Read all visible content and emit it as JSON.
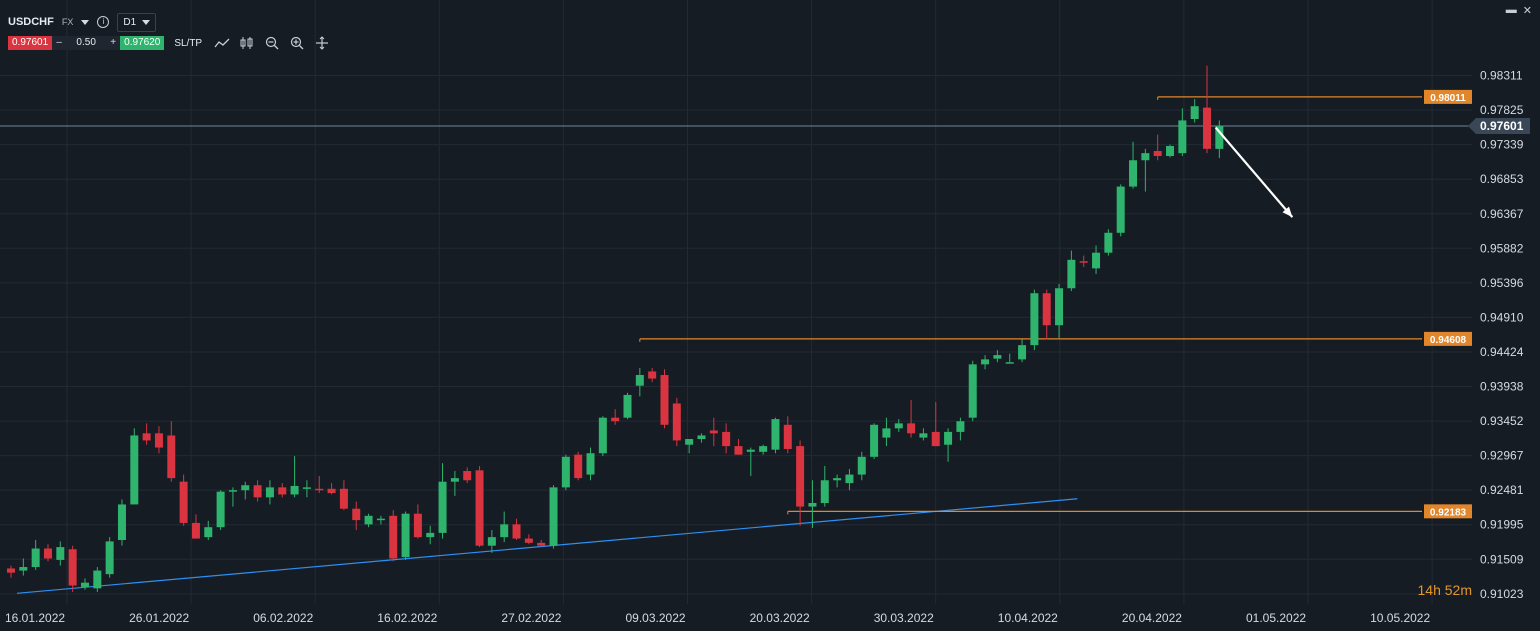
{
  "toolbar": {
    "symbol": "USDCHF",
    "market": "FX",
    "timeframe": "D1",
    "sell_price": "0.97601",
    "lot_minus": "–",
    "lot_size": "0.50",
    "lot_plus": "+",
    "buy_price": "0.97620",
    "sltp_label": "SL/TP",
    "tools": [
      "line-chart-icon",
      "candlestick-icon",
      "zoom-out-icon",
      "zoom-in-icon",
      "crosshair-icon"
    ]
  },
  "window": {
    "minimize": "▬",
    "close": "✕"
  },
  "countdown": {
    "hours": "14",
    "h": "h",
    "minutes": "52",
    "m": "m"
  },
  "colors": {
    "background": "#161c24",
    "grid": "#222a34",
    "bull": "#2fb46d",
    "bear": "#d9343f",
    "level": "#e2862b",
    "trendline": "#2e8ff2",
    "price_line": "#6f8696",
    "arrow": "#ffffff"
  },
  "chart_data": {
    "type": "candlestick",
    "symbol": "USDCHF",
    "timeframe": "D1",
    "ylim": [
      0.9088,
      0.986
    ],
    "y_ticks": [
      "0.98311",
      "0.97825",
      "0.97339",
      "0.96853",
      "0.96367",
      "0.95882",
      "0.95396",
      "0.94910",
      "0.94424",
      "0.93938",
      "0.93452",
      "0.92967",
      "0.92481",
      "0.91995",
      "0.91509",
      "0.91023"
    ],
    "x_ticks": [
      "16.01.2022",
      "26.01.2022",
      "06.02.2022",
      "16.02.2022",
      "27.02.2022",
      "09.03.2022",
      "20.03.2022",
      "30.03.2022",
      "10.04.2022",
      "20.04.2022",
      "01.05.2022",
      "10.05.2022"
    ],
    "current_price": "0.97601",
    "levels": [
      {
        "label": "0.98011",
        "value": 0.98011,
        "from_index": 93
      },
      {
        "label": "0.94608",
        "value": 0.94608,
        "from_index": 51
      },
      {
        "label": "0.92183",
        "value": 0.92183,
        "from_index": 63
      }
    ],
    "trendline": {
      "from_index": 0,
      "from_value": 0.9103,
      "to_index": 86,
      "to_value": 0.9236
    },
    "arrow": {
      "from_index": 96,
      "from_value": 0.9758,
      "to_index": 101,
      "to_value": 0.9632
    },
    "candles": [
      [
        0.9138,
        0.9142,
        0.9125,
        0.9132
      ],
      [
        0.9135,
        0.9152,
        0.9128,
        0.914
      ],
      [
        0.914,
        0.9178,
        0.9136,
        0.9166
      ],
      [
        0.9166,
        0.9172,
        0.9148,
        0.9152
      ],
      [
        0.915,
        0.9176,
        0.9142,
        0.9168
      ],
      [
        0.9165,
        0.917,
        0.9105,
        0.9114
      ],
      [
        0.9112,
        0.9124,
        0.9108,
        0.9118
      ],
      [
        0.911,
        0.914,
        0.9105,
        0.9135
      ],
      [
        0.913,
        0.9182,
        0.9125,
        0.9176
      ],
      [
        0.9178,
        0.9235,
        0.917,
        0.9228
      ],
      [
        0.9228,
        0.9335,
        0.9228,
        0.9325
      ],
      [
        0.9328,
        0.9342,
        0.9312,
        0.9318
      ],
      [
        0.9328,
        0.9338,
        0.93,
        0.9308
      ],
      [
        0.9325,
        0.9345,
        0.926,
        0.9265
      ],
      [
        0.926,
        0.927,
        0.9198,
        0.9202
      ],
      [
        0.9202,
        0.9214,
        0.918,
        0.918
      ],
      [
        0.9182,
        0.9205,
        0.9178,
        0.9196
      ],
      [
        0.9196,
        0.9248,
        0.9192,
        0.9246
      ],
      [
        0.9246,
        0.9252,
        0.9225,
        0.9248
      ],
      [
        0.9248,
        0.926,
        0.9235,
        0.9255
      ],
      [
        0.9255,
        0.9262,
        0.9232,
        0.9238
      ],
      [
        0.9238,
        0.9262,
        0.9228,
        0.9252
      ],
      [
        0.9252,
        0.9258,
        0.9238,
        0.9242
      ],
      [
        0.9242,
        0.9296,
        0.9238,
        0.9254
      ],
      [
        0.925,
        0.9262,
        0.9238,
        0.9252
      ],
      [
        0.925,
        0.9268,
        0.9244,
        0.9248
      ],
      [
        0.925,
        0.9258,
        0.9242,
        0.9244
      ],
      [
        0.925,
        0.9262,
        0.922,
        0.9222
      ],
      [
        0.9222,
        0.9232,
        0.9192,
        0.9206
      ],
      [
        0.92,
        0.9215,
        0.9196,
        0.9212
      ],
      [
        0.9206,
        0.9212,
        0.92,
        0.9208
      ],
      [
        0.9212,
        0.922,
        0.9148,
        0.9152
      ],
      [
        0.9154,
        0.9218,
        0.915,
        0.9215
      ],
      [
        0.9215,
        0.9228,
        0.918,
        0.9182
      ],
      [
        0.9182,
        0.9198,
        0.9172,
        0.9188
      ],
      [
        0.9188,
        0.9286,
        0.918,
        0.926
      ],
      [
        0.926,
        0.9275,
        0.924,
        0.9265
      ],
      [
        0.9275,
        0.928,
        0.9258,
        0.9262
      ],
      [
        0.9276,
        0.9282,
        0.9168,
        0.917
      ],
      [
        0.917,
        0.9192,
        0.916,
        0.9182
      ],
      [
        0.9182,
        0.9218,
        0.9175,
        0.92
      ],
      [
        0.92,
        0.9208,
        0.9178,
        0.918
      ],
      [
        0.918,
        0.9186,
        0.9172,
        0.9174
      ],
      [
        0.9174,
        0.9178,
        0.9168,
        0.917
      ],
      [
        0.917,
        0.9255,
        0.9166,
        0.9252
      ],
      [
        0.9252,
        0.9298,
        0.9248,
        0.9295
      ],
      [
        0.9298,
        0.9302,
        0.9262,
        0.9265
      ],
      [
        0.927,
        0.9308,
        0.9262,
        0.93
      ],
      [
        0.93,
        0.9352,
        0.9296,
        0.935
      ],
      [
        0.935,
        0.9362,
        0.934,
        0.9345
      ],
      [
        0.935,
        0.9385,
        0.9348,
        0.9382
      ],
      [
        0.9395,
        0.942,
        0.938,
        0.941
      ],
      [
        0.9415,
        0.942,
        0.94,
        0.9405
      ],
      [
        0.941,
        0.9418,
        0.9335,
        0.934
      ],
      [
        0.937,
        0.9378,
        0.931,
        0.9318
      ],
      [
        0.9312,
        0.9318,
        0.93,
        0.932
      ],
      [
        0.932,
        0.9328,
        0.9315,
        0.9325
      ],
      [
        0.9332,
        0.935,
        0.931,
        0.9328
      ],
      [
        0.933,
        0.9342,
        0.93,
        0.931
      ],
      [
        0.931,
        0.932,
        0.9298,
        0.9298
      ],
      [
        0.9302,
        0.9308,
        0.9268,
        0.9305
      ],
      [
        0.9302,
        0.9312,
        0.9298,
        0.931
      ],
      [
        0.9305,
        0.935,
        0.93,
        0.9348
      ],
      [
        0.934,
        0.9352,
        0.93,
        0.9306
      ],
      [
        0.931,
        0.9318,
        0.9198,
        0.9225
      ],
      [
        0.9225,
        0.9262,
        0.9195,
        0.923
      ],
      [
        0.923,
        0.9282,
        0.9225,
        0.9262
      ],
      [
        0.9262,
        0.927,
        0.9252,
        0.9265
      ],
      [
        0.9258,
        0.9278,
        0.9248,
        0.927
      ],
      [
        0.927,
        0.9302,
        0.9262,
        0.9295
      ],
      [
        0.9295,
        0.9342,
        0.9292,
        0.934
      ],
      [
        0.9322,
        0.935,
        0.931,
        0.9335
      ],
      [
        0.9335,
        0.9348,
        0.933,
        0.9342
      ],
      [
        0.9342,
        0.9375,
        0.9322,
        0.9328
      ],
      [
        0.9322,
        0.9335,
        0.9318,
        0.9328
      ],
      [
        0.933,
        0.9372,
        0.9312,
        0.931
      ],
      [
        0.9312,
        0.9335,
        0.9288,
        0.933
      ],
      [
        0.933,
        0.935,
        0.9318,
        0.9345
      ],
      [
        0.935,
        0.943,
        0.9345,
        0.9425
      ],
      [
        0.9425,
        0.9438,
        0.9418,
        0.9432
      ],
      [
        0.9433,
        0.9445,
        0.9428,
        0.9438
      ],
      [
        0.9428,
        0.944,
        0.9428,
        0.9428
      ],
      [
        0.9432,
        0.946,
        0.9428,
        0.9452
      ],
      [
        0.9452,
        0.953,
        0.9445,
        0.9525
      ],
      [
        0.9525,
        0.953,
        0.946,
        0.948
      ],
      [
        0.948,
        0.9538,
        0.9462,
        0.9532
      ],
      [
        0.9532,
        0.9585,
        0.9528,
        0.9572
      ],
      [
        0.957,
        0.9578,
        0.9562,
        0.9568
      ],
      [
        0.956,
        0.9592,
        0.9552,
        0.9582
      ],
      [
        0.9582,
        0.9615,
        0.9578,
        0.961
      ],
      [
        0.961,
        0.9678,
        0.9605,
        0.9675
      ],
      [
        0.9675,
        0.9738,
        0.9672,
        0.9712
      ],
      [
        0.9712,
        0.9728,
        0.9668,
        0.9722
      ],
      [
        0.9725,
        0.9748,
        0.9712,
        0.9718
      ],
      [
        0.9718,
        0.9734,
        0.9716,
        0.9732
      ],
      [
        0.9722,
        0.9785,
        0.9718,
        0.9768
      ],
      [
        0.977,
        0.9798,
        0.9765,
        0.9788
      ],
      [
        0.9786,
        0.9845,
        0.9722,
        0.9728
      ],
      [
        0.9728,
        0.9768,
        0.9715,
        0.976
      ]
    ]
  }
}
